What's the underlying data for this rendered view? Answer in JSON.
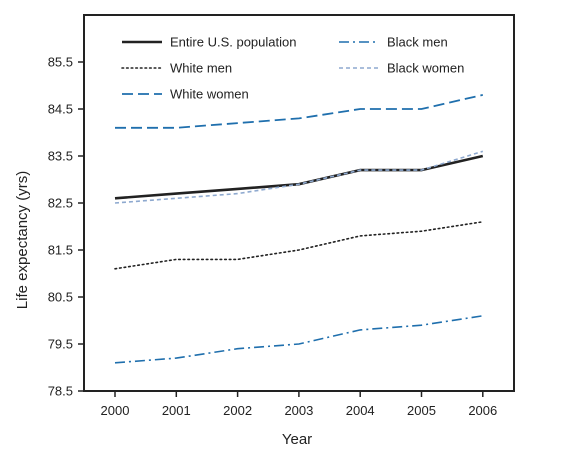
{
  "chart_data": {
    "type": "line",
    "xlabel": "Year",
    "ylabel": "Life expectancy (yrs)",
    "x": [
      2000,
      2001,
      2002,
      2003,
      2004,
      2005,
      2006
    ],
    "x_ticks": [
      "2000",
      "2001",
      "2002",
      "2003",
      "2004",
      "2005",
      "2006"
    ],
    "ylim": [
      78.5,
      86.5
    ],
    "y_ticks": [
      "78.5",
      "79.5",
      "80.5",
      "81.5",
      "82.5",
      "83.5",
      "84.5",
      "85.5"
    ],
    "grid": false,
    "legend_position": "top",
    "series": [
      {
        "name": "Entire U.S. population",
        "color": "#222222",
        "style": "solid",
        "values": [
          82.6,
          82.7,
          82.8,
          82.9,
          83.2,
          83.2,
          83.5
        ]
      },
      {
        "name": "White men",
        "color": "#222222",
        "style": "dotted",
        "values": [
          81.1,
          81.3,
          81.3,
          81.5,
          81.8,
          81.9,
          82.1
        ]
      },
      {
        "name": "White women",
        "color": "#1f6fad",
        "style": "dashed",
        "values": [
          84.1,
          84.1,
          84.2,
          84.3,
          84.5,
          84.5,
          84.8
        ]
      },
      {
        "name": "Black men",
        "color": "#1f6fad",
        "style": "dashdot",
        "values": [
          79.1,
          79.2,
          79.4,
          79.5,
          79.8,
          79.9,
          80.1
        ]
      },
      {
        "name": "Black women",
        "color": "#8ea9cf",
        "style": "shortdash",
        "values": [
          82.5,
          82.6,
          82.7,
          82.9,
          83.2,
          83.2,
          83.6
        ]
      }
    ]
  }
}
